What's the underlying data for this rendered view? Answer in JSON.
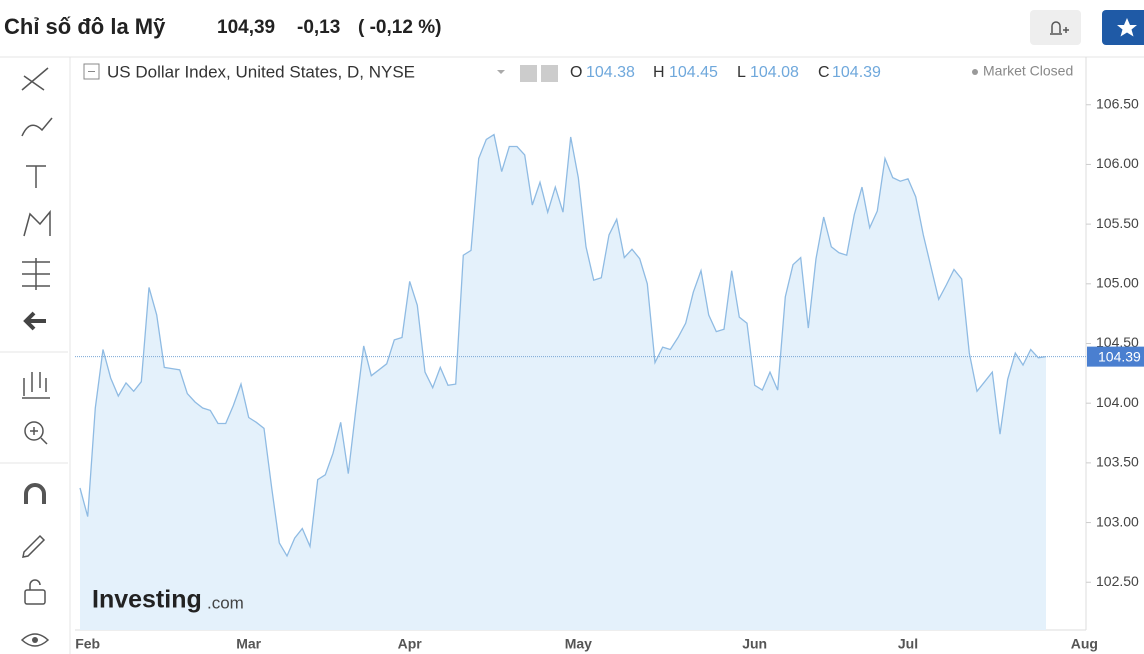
{
  "header": {
    "title": "Chỉ số đô la Mỹ",
    "price": "104,39",
    "change": "-0,13",
    "change_percent": "( -0,12 %)"
  },
  "legend_bar": {
    "symbol": "US Dollar Index, United States, D, NYSE",
    "open_label": "O",
    "open": 104.38,
    "high_label": "H",
    "high": 104.45,
    "low_label": "L",
    "low": 104.08,
    "close_label": "C",
    "close": 104.39,
    "status": "Market Closed"
  },
  "watermark": {
    "brand": "Investing",
    "suffix": ".com"
  },
  "chart_data": {
    "type": "area",
    "categories": [
      null,
      "Feb",
      null,
      null,
      null,
      null,
      null,
      null,
      null,
      null,
      null,
      null,
      null,
      null,
      null,
      null,
      null,
      null,
      null,
      null,
      null,
      null,
      "Mar",
      null,
      null,
      null,
      null,
      null,
      null,
      null,
      null,
      null,
      null,
      null,
      null,
      null,
      null,
      null,
      null,
      null,
      null,
      null,
      null,
      "Apr",
      null,
      null,
      null,
      null,
      null,
      null,
      null,
      null,
      null,
      null,
      null,
      null,
      null,
      null,
      null,
      null,
      null,
      null,
      null,
      null,
      null,
      "May",
      null,
      null,
      null,
      null,
      null,
      null,
      null,
      null,
      null,
      null,
      null,
      null,
      null,
      null,
      null,
      null,
      null,
      null,
      null,
      null,
      null,
      null,
      "Jun",
      null,
      null,
      null,
      null,
      null,
      null,
      null,
      null,
      null,
      null,
      null,
      null,
      null,
      null,
      null,
      null,
      null,
      null,
      null,
      "Jul",
      null,
      null,
      null,
      null,
      null,
      null,
      null,
      null,
      null,
      null,
      null,
      null,
      null,
      null,
      null,
      null,
      null,
      null,
      null,
      null,
      null,
      null,
      "Aug"
    ],
    "values": [
      103.29,
      103.05,
      103.96,
      104.45,
      104.21,
      104.06,
      104.17,
      104.1,
      104.18,
      104.97,
      104.74,
      104.3,
      104.29,
      104.28,
      104.08,
      104.01,
      103.96,
      103.94,
      103.83,
      103.83,
      103.98,
      104.16,
      103.88,
      103.84,
      103.79,
      103.29,
      102.83,
      102.72,
      102.87,
      102.95,
      102.8,
      103.36,
      103.4,
      103.58,
      103.84,
      103.41,
      103.96,
      104.48,
      104.23,
      104.28,
      104.33,
      104.53,
      104.55,
      105.02,
      104.82,
      104.26,
      104.13,
      104.3,
      104.15,
      104.16,
      105.24,
      105.28,
      106.05,
      106.21,
      106.25,
      105.94,
      106.15,
      106.15,
      106.08,
      105.66,
      105.85,
      105.6,
      105.81,
      105.6,
      106.23,
      105.89,
      105.31,
      105.03,
      105.05,
      105.41,
      105.54,
      105.22,
      105.29,
      105.21,
      105.0,
      104.34,
      104.47,
      104.45,
      104.55,
      104.67,
      104.93,
      105.11,
      104.74,
      104.6,
      104.62,
      105.11,
      104.72,
      104.67,
      104.15,
      104.11,
      104.26,
      104.11,
      104.89,
      105.16,
      105.22,
      104.63,
      105.21,
      105.56,
      105.31,
      105.26,
      105.24,
      105.58,
      105.81,
      105.47,
      105.61,
      106.05,
      105.89,
      105.86,
      105.88,
      105.73,
      105.41,
      105.14,
      104.87,
      104.99,
      105.12,
      105.04,
      104.42,
      104.1,
      104.18,
      104.26,
      103.74,
      104.2,
      104.42,
      104.32,
      104.45,
      104.38,
      104.39,
      null,
      null,
      null,
      null,
      null
    ],
    "color": "#8fbbe3",
    "fill_color": "#e4f1fb",
    "ylim": [
      102.1,
      106.9
    ],
    "yticks": [
      {
        "value": 102.5,
        "label": "102.50"
      },
      {
        "value": 103,
        "label": "103.00"
      },
      {
        "value": 103.5,
        "label": "103.50"
      },
      {
        "value": 104,
        "label": "104.00"
      },
      {
        "value": 104.5,
        "label": "104.50"
      },
      {
        "value": 105,
        "label": "105.00"
      },
      {
        "value": 105.5,
        "label": "105.50"
      },
      {
        "value": 106,
        "label": "106.00"
      },
      {
        "value": 106.5,
        "label": "106.50"
      }
    ],
    "grid": false
  }
}
